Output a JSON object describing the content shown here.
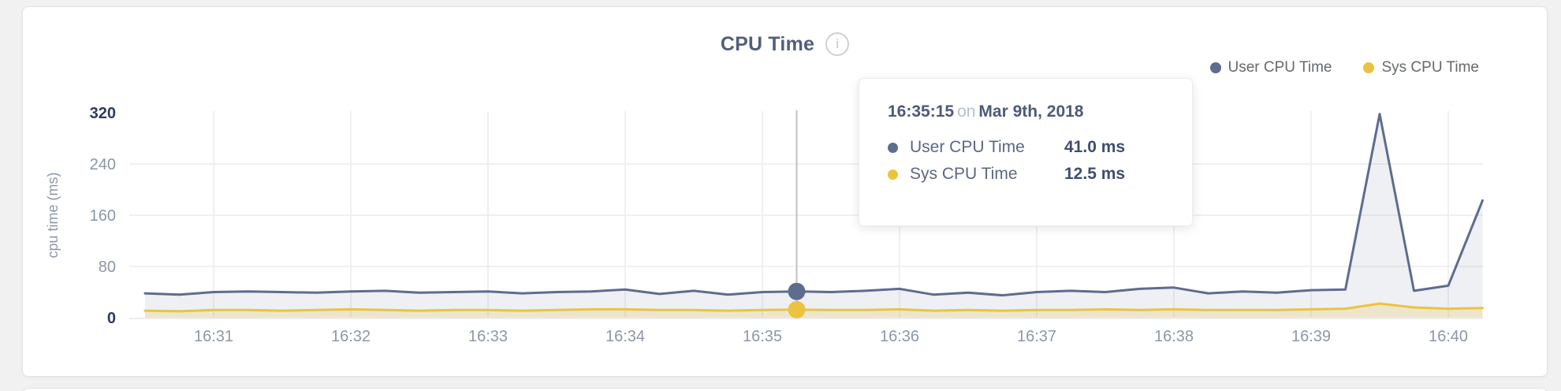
{
  "header": {
    "title": "CPU Time",
    "info_icon": "i"
  },
  "legend": {
    "items": [
      {
        "label": "User CPU Time",
        "color": "#5e6c8f"
      },
      {
        "label": "Sys CPU Time",
        "color": "#ecc340"
      }
    ]
  },
  "tooltip": {
    "time": "16:35:15",
    "connector": "on",
    "date": "Mar 9th, 2018",
    "rows": [
      {
        "label": "User CPU Time",
        "value": "41.0 ms",
        "color": "#5e6c8f"
      },
      {
        "label": "Sys CPU Time",
        "value": "12.5 ms",
        "color": "#ecc340"
      }
    ]
  },
  "chart_data": {
    "type": "area",
    "title": "CPU Time",
    "xlabel": "",
    "ylabel": "cpu time (ms)",
    "ylim": [
      0,
      320
    ],
    "y_ticks": [
      0,
      80,
      160,
      240,
      320
    ],
    "x_ticks": [
      "16:31",
      "16:32",
      "16:33",
      "16:34",
      "16:35",
      "16:36",
      "16:37",
      "16:38",
      "16:39",
      "16:40"
    ],
    "grid": true,
    "legend_position": "top-right",
    "x": [
      "16:30:30",
      "16:30:45",
      "16:31:00",
      "16:31:15",
      "16:31:30",
      "16:31:45",
      "16:32:00",
      "16:32:15",
      "16:32:30",
      "16:32:45",
      "16:33:00",
      "16:33:15",
      "16:33:30",
      "16:33:45",
      "16:34:00",
      "16:34:15",
      "16:34:30",
      "16:34:45",
      "16:35:00",
      "16:35:15",
      "16:35:30",
      "16:35:45",
      "16:36:00",
      "16:36:15",
      "16:36:30",
      "16:36:45",
      "16:37:00",
      "16:37:15",
      "16:37:30",
      "16:37:45",
      "16:38:00",
      "16:38:15",
      "16:38:30",
      "16:38:45",
      "16:39:00",
      "16:39:15",
      "16:39:30",
      "16:39:45",
      "16:40:00",
      "16:40:15"
    ],
    "series": [
      {
        "name": "User CPU Time",
        "color": "#5e6c8f",
        "fill": "rgba(94,108,143,0.10)",
        "values": [
          38,
          36,
          40,
          41,
          40,
          39,
          41,
          42,
          39,
          40,
          41,
          38,
          40,
          41,
          44,
          37,
          42,
          36,
          40,
          41,
          40,
          42,
          45,
          36,
          39,
          35,
          40,
          42,
          40,
          45,
          47,
          38,
          41,
          39,
          43,
          44,
          318,
          42,
          50,
          183
        ]
      },
      {
        "name": "Sys CPU Time",
        "color": "#ecc340",
        "fill": "rgba(236,195,64,0.22)",
        "values": [
          11,
          10,
          12,
          12,
          11,
          12,
          13,
          12,
          11,
          12,
          12,
          11,
          12,
          13,
          13,
          12,
          12,
          11,
          12,
          12.5,
          12,
          12,
          13,
          11,
          12,
          11,
          12,
          12,
          13,
          12,
          13,
          12,
          12,
          12,
          13,
          14,
          22,
          16,
          14,
          15
        ]
      }
    ],
    "hover_index": 19,
    "hover": {
      "time": "16:35:15",
      "user_value_ms": 41.0,
      "sys_value_ms": 12.5
    },
    "axis": {
      "tick_color_mid": "#8d97a8",
      "tick_color_edge": "#2d3c5c",
      "grid_color": "#ececec",
      "baseline_color": "#e7e7e7",
      "hover_line_color": "#c2c2c2",
      "ylabel_color": "#8d97a8"
    }
  }
}
